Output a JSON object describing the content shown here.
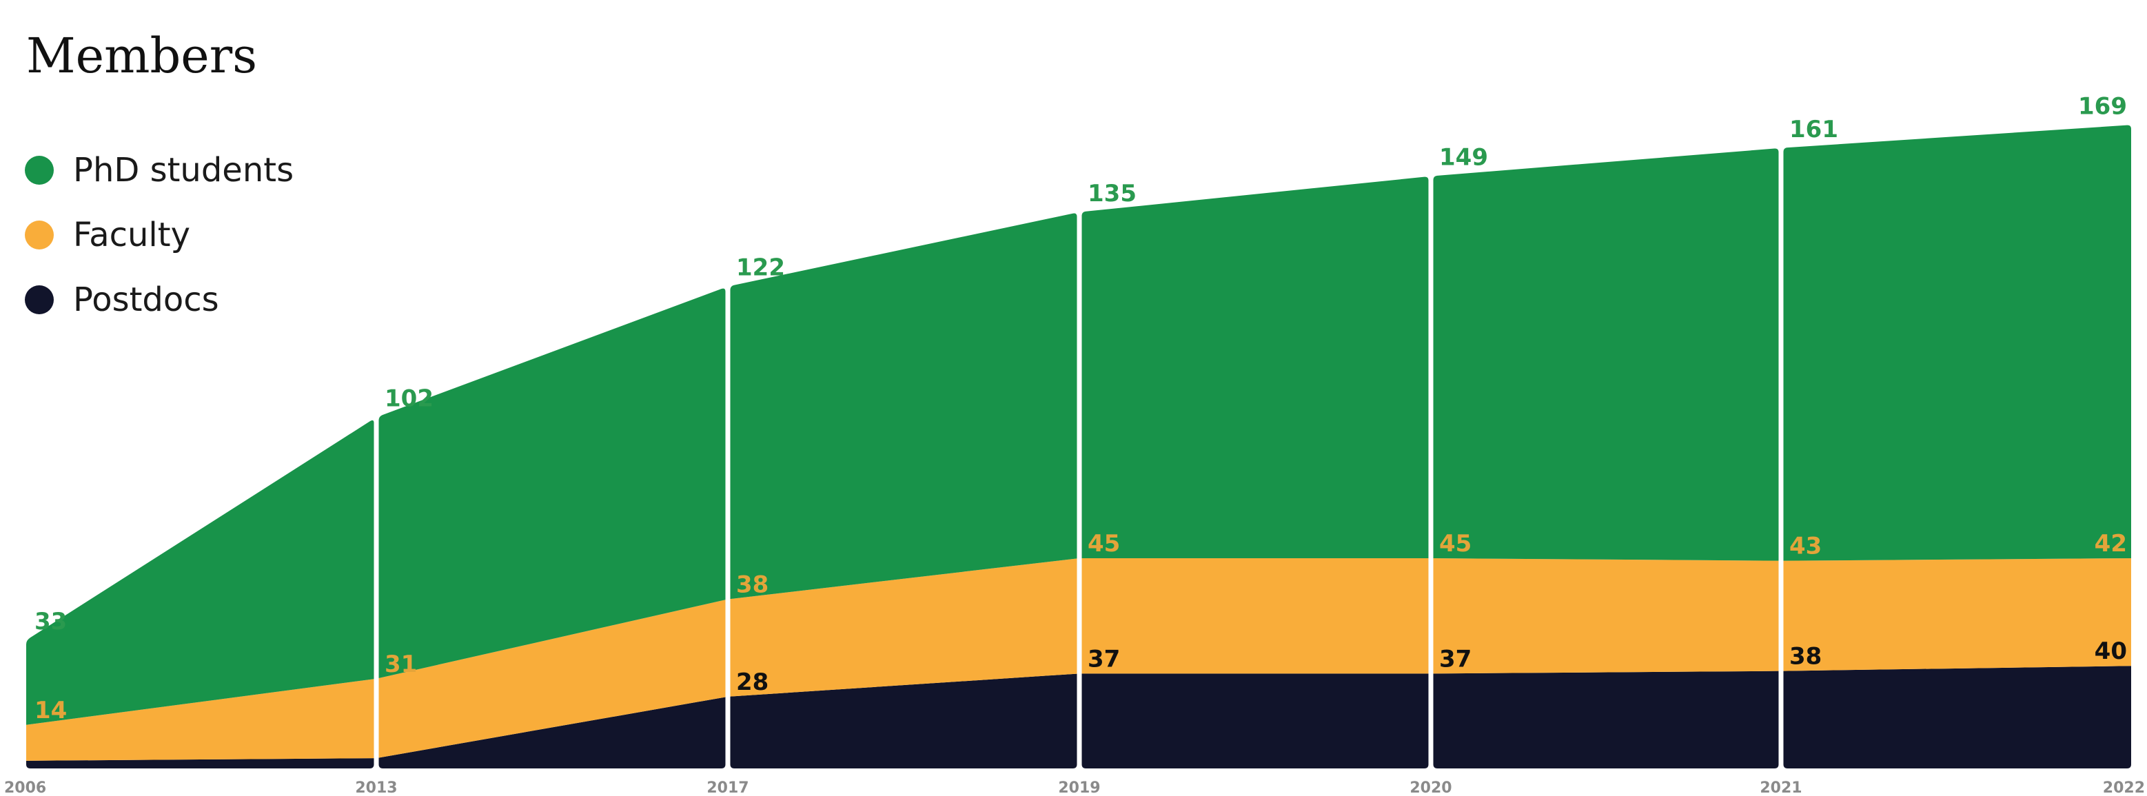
{
  "chart_data": {
    "type": "area",
    "title": "Members",
    "categories": [
      "2006",
      "2013",
      "2017",
      "2019",
      "2020",
      "2021",
      "2022"
    ],
    "stacked": true,
    "series": [
      {
        "name": "Postdocs",
        "values": [
          3,
          4,
          28,
          37,
          37,
          38,
          40
        ]
      },
      {
        "name": "Faculty",
        "values": [
          14,
          31,
          38,
          45,
          45,
          43,
          42
        ]
      },
      {
        "name": "PhD students",
        "values": [
          33,
          102,
          122,
          135,
          149,
          161,
          169
        ]
      }
    ],
    "legend_order": [
      "PhD students",
      "Faculty",
      "Postdocs"
    ],
    "legend": "top-left",
    "grid": false
  },
  "colors": {
    "PhD students": "#18934a",
    "Faculty": "#f9ad3a",
    "Postdocs": "#11142b"
  },
  "label_colors": {
    "PhD students": "#2a9a4f",
    "Faculty": "#e3a43a",
    "Postdocs_first_two": "#ffffff",
    "Postdocs_rest": "#111111"
  }
}
